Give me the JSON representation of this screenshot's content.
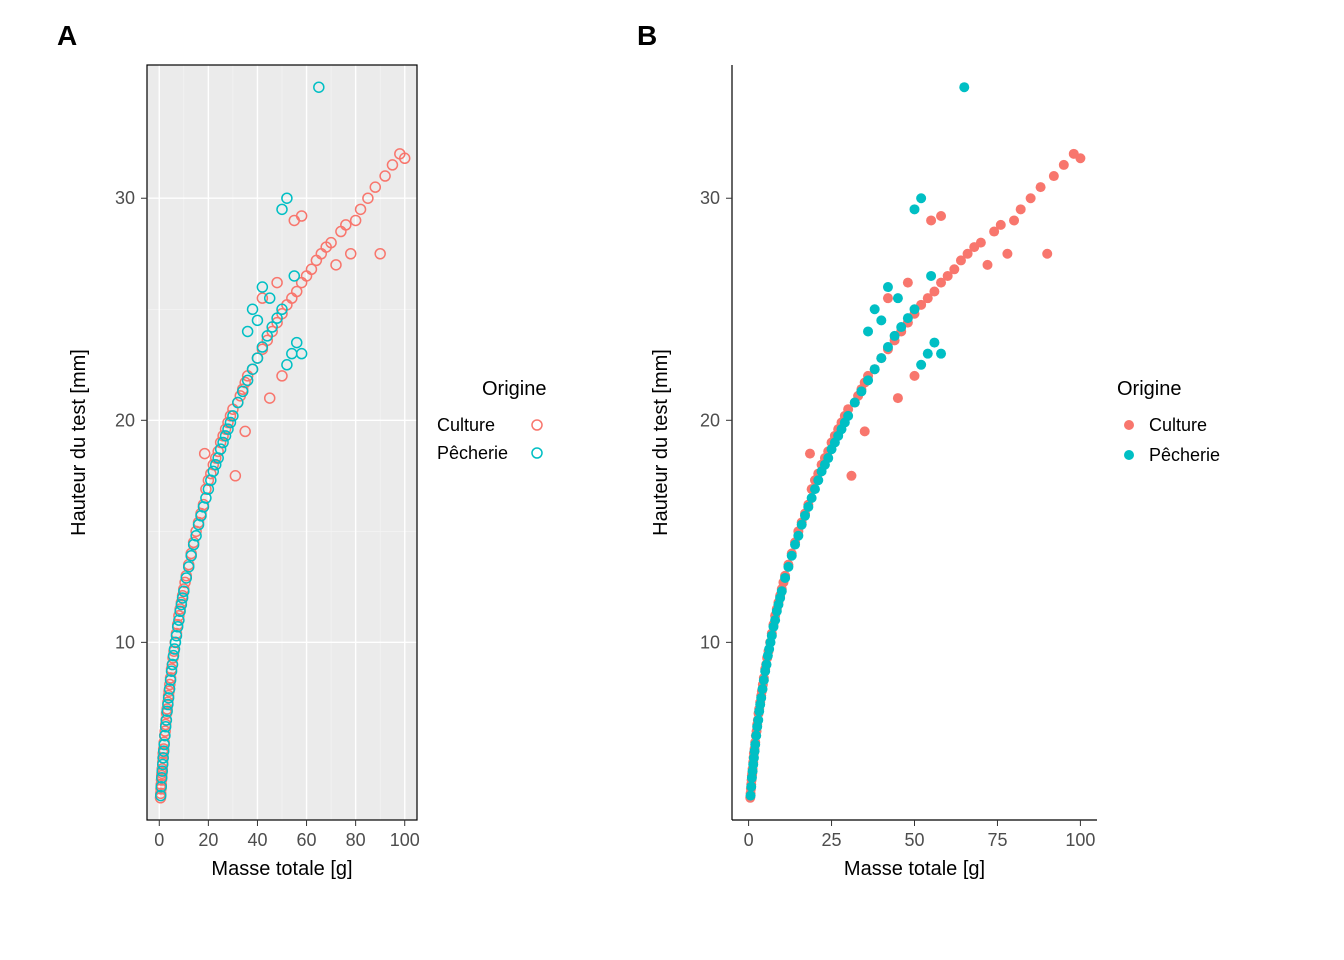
{
  "panelA": {
    "label": "A",
    "type": "scatter",
    "marker_style": "open_circle",
    "marker_radius": 5,
    "marker_stroke_width": 1.5,
    "background_color": "#ebebeb",
    "grid_major_color": "#ffffff",
    "grid_minor_color": "#f5f5f5",
    "panel_border_color": "#000000",
    "tick_color": "#333333",
    "xlabel": "Masse totale [g]",
    "ylabel": "Hauteur du test [mm]",
    "label_fontsize": 20,
    "tick_fontsize": 18,
    "xlim": [
      -5,
      105
    ],
    "ylim": [
      2,
      36
    ],
    "xticks": [
      0,
      20,
      40,
      60,
      80,
      100
    ],
    "yticks": [
      10,
      20,
      30
    ],
    "series": [
      {
        "name": "Culture",
        "color": "#F8766D"
      },
      {
        "name": "Pêcherie",
        "color": "#00BFC4"
      }
    ]
  },
  "panelB": {
    "label": "B",
    "type": "scatter",
    "marker_style": "filled_circle",
    "marker_radius": 5,
    "marker_fill_opacity": 1.0,
    "background_color": "#ffffff",
    "axis_line_color": "#000000",
    "tick_color": "#333333",
    "xlabel": "Masse totale  [g]",
    "ylabel": "Hauteur du test  [mm]",
    "label_fontsize": 20,
    "tick_fontsize": 18,
    "xlim": [
      -5,
      105
    ],
    "ylim": [
      2,
      36
    ],
    "xticks": [
      0,
      25,
      50,
      75,
      100
    ],
    "yticks": [
      10,
      20,
      30
    ],
    "series": [
      {
        "name": "Culture",
        "color": "#F8766D"
      },
      {
        "name": "Pêcherie",
        "color": "#00BFC4"
      }
    ]
  },
  "legends": {
    "A": {
      "title": "Origine",
      "items": [
        {
          "label": "Culture",
          "color": "#F8766D",
          "style": "open_circle"
        },
        {
          "label": "Pêcherie",
          "color": "#00BFC4",
          "style": "open_circle"
        }
      ]
    },
    "B": {
      "title": "Origine",
      "items": [
        {
          "label": "Culture",
          "color": "#F8766D",
          "style": "filled_circle"
        },
        {
          "label": "Pêcherie",
          "color": "#00BFC4",
          "style": "filled_circle"
        }
      ]
    }
  },
  "data_points": {
    "culture": [
      [
        0.5,
        3.0
      ],
      [
        0.6,
        3.2
      ],
      [
        0.7,
        3.4
      ],
      [
        0.8,
        3.6
      ],
      [
        0.9,
        3.8
      ],
      [
        1.0,
        4.0
      ],
      [
        1.1,
        4.1
      ],
      [
        1.2,
        4.3
      ],
      [
        1.4,
        4.6
      ],
      [
        1.5,
        4.8
      ],
      [
        1.6,
        5.0
      ],
      [
        1.8,
        5.2
      ],
      [
        2.0,
        5.5
      ],
      [
        2.2,
        5.8
      ],
      [
        2.4,
        6.0
      ],
      [
        2.6,
        6.3
      ],
      [
        2.8,
        6.5
      ],
      [
        3.0,
        6.8
      ],
      [
        3.2,
        7.0
      ],
      [
        3.5,
        7.3
      ],
      [
        3.8,
        7.6
      ],
      [
        4.0,
        7.8
      ],
      [
        4.3,
        8.1
      ],
      [
        4.6,
        8.4
      ],
      [
        5.0,
        8.8
      ],
      [
        5.3,
        9.0
      ],
      [
        5.6,
        9.3
      ],
      [
        6.0,
        9.6
      ],
      [
        6.5,
        10.0
      ],
      [
        7.0,
        10.4
      ],
      [
        7.5,
        10.8
      ],
      [
        8.0,
        11.2
      ],
      [
        8.5,
        11.5
      ],
      [
        9.0,
        11.8
      ],
      [
        9.5,
        12.1
      ],
      [
        10.0,
        12.4
      ],
      [
        10.5,
        12.7
      ],
      [
        11.0,
        13.0
      ],
      [
        12.0,
        13.5
      ],
      [
        13.0,
        14.0
      ],
      [
        14.0,
        14.5
      ],
      [
        15.0,
        15.0
      ],
      [
        16.0,
        15.4
      ],
      [
        17.0,
        15.8
      ],
      [
        18.0,
        16.2
      ],
      [
        18.5,
        18.5
      ],
      [
        19.0,
        16.9
      ],
      [
        20.0,
        17.3
      ],
      [
        21.0,
        17.6
      ],
      [
        22.0,
        18.0
      ],
      [
        23.0,
        18.3
      ],
      [
        24.0,
        18.6
      ],
      [
        25.0,
        19.0
      ],
      [
        26.0,
        19.3
      ],
      [
        27.0,
        19.6
      ],
      [
        28.0,
        19.9
      ],
      [
        29.0,
        20.2
      ],
      [
        30.0,
        20.5
      ],
      [
        31.0,
        17.5
      ],
      [
        32.0,
        20.8
      ],
      [
        33.0,
        21.1
      ],
      [
        34.0,
        21.4
      ],
      [
        35.0,
        21.7
      ],
      [
        36.0,
        22.0
      ],
      [
        38.0,
        22.3
      ],
      [
        40.0,
        22.8
      ],
      [
        42.0,
        23.2
      ],
      [
        44.0,
        23.6
      ],
      [
        45.0,
        21.0
      ],
      [
        46.0,
        24.0
      ],
      [
        48.0,
        24.4
      ],
      [
        50.0,
        24.8
      ],
      [
        52.0,
        25.2
      ],
      [
        54.0,
        25.5
      ],
      [
        56.0,
        25.8
      ],
      [
        58.0,
        26.2
      ],
      [
        60.0,
        26.5
      ],
      [
        62.0,
        26.8
      ],
      [
        64.0,
        27.2
      ],
      [
        66.0,
        27.5
      ],
      [
        68.0,
        27.8
      ],
      [
        70.0,
        28.0
      ],
      [
        72.0,
        27.0
      ],
      [
        74.0,
        28.5
      ],
      [
        76.0,
        28.8
      ],
      [
        78.0,
        27.5
      ],
      [
        80.0,
        29.0
      ],
      [
        82.0,
        29.5
      ],
      [
        85.0,
        30.0
      ],
      [
        88.0,
        30.5
      ],
      [
        90.0,
        27.5
      ],
      [
        92.0,
        31.0
      ],
      [
        95.0,
        31.5
      ],
      [
        98.0,
        32.0
      ],
      [
        100.0,
        31.8
      ],
      [
        55.0,
        29.0
      ],
      [
        58.0,
        29.2
      ],
      [
        50.0,
        22.0
      ],
      [
        35.0,
        19.5
      ],
      [
        42.0,
        25.5
      ],
      [
        48.0,
        26.2
      ]
    ],
    "pecherie": [
      [
        0.6,
        3.1
      ],
      [
        0.8,
        3.5
      ],
      [
        1.0,
        3.9
      ],
      [
        1.2,
        4.2
      ],
      [
        1.4,
        4.5
      ],
      [
        1.6,
        4.8
      ],
      [
        1.8,
        5.1
      ],
      [
        2.0,
        5.4
      ],
      [
        2.3,
        5.8
      ],
      [
        2.6,
        6.2
      ],
      [
        2.9,
        6.5
      ],
      [
        3.2,
        6.9
      ],
      [
        3.5,
        7.2
      ],
      [
        3.8,
        7.5
      ],
      [
        4.2,
        7.9
      ],
      [
        4.6,
        8.3
      ],
      [
        5.0,
        8.7
      ],
      [
        5.4,
        9.0
      ],
      [
        5.8,
        9.4
      ],
      [
        6.2,
        9.7
      ],
      [
        6.6,
        10.0
      ],
      [
        7.0,
        10.3
      ],
      [
        7.5,
        10.7
      ],
      [
        8.0,
        11.0
      ],
      [
        8.5,
        11.4
      ],
      [
        9.0,
        11.7
      ],
      [
        9.5,
        12.0
      ],
      [
        10.0,
        12.3
      ],
      [
        11.0,
        12.9
      ],
      [
        12.0,
        13.4
      ],
      [
        13.0,
        13.9
      ],
      [
        14.0,
        14.4
      ],
      [
        15.0,
        14.8
      ],
      [
        16.0,
        15.3
      ],
      [
        17.0,
        15.7
      ],
      [
        18.0,
        16.1
      ],
      [
        19.0,
        16.5
      ],
      [
        20.0,
        16.9
      ],
      [
        21.0,
        17.3
      ],
      [
        22.0,
        17.7
      ],
      [
        23.0,
        18.0
      ],
      [
        24.0,
        18.3
      ],
      [
        25.0,
        18.7
      ],
      [
        26.0,
        19.0
      ],
      [
        27.0,
        19.3
      ],
      [
        28.0,
        19.6
      ],
      [
        29.0,
        19.9
      ],
      [
        30.0,
        20.2
      ],
      [
        32.0,
        20.8
      ],
      [
        34.0,
        21.3
      ],
      [
        36.0,
        21.8
      ],
      [
        38.0,
        22.3
      ],
      [
        40.0,
        22.8
      ],
      [
        42.0,
        23.3
      ],
      [
        44.0,
        23.8
      ],
      [
        38.0,
        25.0
      ],
      [
        46.0,
        24.2
      ],
      [
        48.0,
        24.6
      ],
      [
        50.0,
        25.0
      ],
      [
        52.0,
        22.5
      ],
      [
        54.0,
        23.0
      ],
      [
        56.0,
        23.5
      ],
      [
        58.0,
        23.0
      ],
      [
        50.0,
        29.5
      ],
      [
        52.0,
        30.0
      ],
      [
        42.0,
        26.0
      ],
      [
        40.0,
        24.5
      ],
      [
        36.0,
        24.0
      ],
      [
        65.0,
        35.0
      ],
      [
        55.0,
        26.5
      ],
      [
        45.0,
        25.5
      ]
    ]
  }
}
